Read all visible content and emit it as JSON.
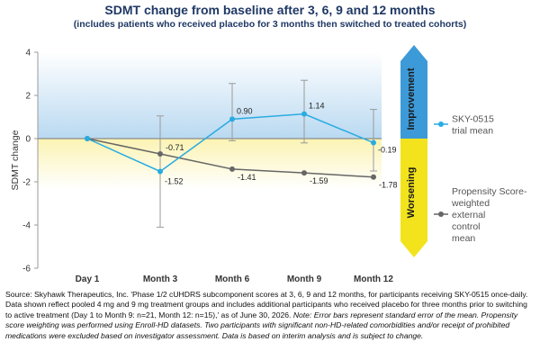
{
  "chart_data": {
    "type": "line",
    "title": "SDMT change from baseline after 3, 6, 9 and 12 months",
    "subtitle": "(includes patients who received placebo for 3 months then switched to treated cohorts)",
    "ylabel": "SDMT change",
    "xlabel": "",
    "ylim": [
      -6,
      4
    ],
    "yticks": [
      "4",
      "2",
      "0",
      "-2",
      "-4",
      "-6"
    ],
    "categories": [
      "Day 1",
      "Month 3",
      "Month 6",
      "Month 9",
      "Month 12"
    ],
    "series": [
      {
        "name": "SKY-0515 trial mean",
        "legend_lines": [
          "SKY-0515",
          "trial mean"
        ],
        "color": "#29abe2",
        "values": [
          0,
          -1.52,
          0.9,
          1.14,
          -0.19
        ],
        "labels": [
          "",
          "-1.52",
          "0.90",
          "1.14",
          "-0.19"
        ],
        "error_low": [
          null,
          -4.1,
          -0.1,
          -0.2,
          -1.5
        ],
        "error_high": [
          null,
          1.05,
          2.55,
          2.7,
          1.35
        ]
      },
      {
        "name": "Propensity Score-weighted external control mean",
        "legend_lines": [
          "Propensity Score-",
          "weighted",
          "external",
          "control",
          "mean"
        ],
        "color": "#666666",
        "values": [
          0,
          -0.71,
          -1.41,
          -1.59,
          -1.78
        ],
        "labels": [
          "",
          "-0.71",
          "-1.41",
          "-1.59",
          "-1.78"
        ]
      }
    ],
    "regions": {
      "improvement": {
        "label": "Improvement",
        "color": "#3d9ad8"
      },
      "worsening": {
        "label": "Worsening",
        "color": "#f2e31d"
      }
    },
    "grid": false,
    "legend_position": "right"
  },
  "footer": {
    "source": "Source: Skyhawk Therapeutics, Inc. 'Phase 1/2 cUHDRS subcomponent scores at 3, 6, 9 and 12 months, for participants receiving SKY-0515 once-daily. Data shown reflect pooled 4 mg and 9 mg treatment groups and includes additional participants who received placebo for three months prior to switching to active treatment (Day 1 to Month 9: n=21, Month 12: n=15),' as of June 30, 2026.",
    "note": "Note: Error bars represent standard error of the mean. Propensity score weighting was performed using Enroll-HD datasets. Two participants with significant non-HD-related comorbidities and/or receipt of prohibited medications were excluded based on investigator assessment. Data is based on interim analysis and is subject to change."
  }
}
